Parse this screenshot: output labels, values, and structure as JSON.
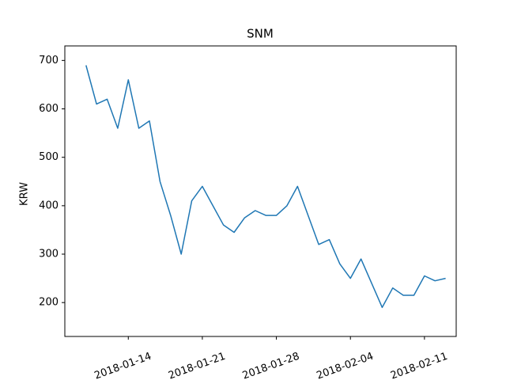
{
  "chart_data": {
    "type": "line",
    "title": "SNM",
    "y_label": "KRW",
    "x": [
      "2018-01-10",
      "2018-01-11",
      "2018-01-12",
      "2018-01-13",
      "2018-01-14",
      "2018-01-15",
      "2018-01-16",
      "2018-01-17",
      "2018-01-18",
      "2018-01-19",
      "2018-01-20",
      "2018-01-21",
      "2018-01-22",
      "2018-01-23",
      "2018-01-24",
      "2018-01-25",
      "2018-01-26",
      "2018-01-27",
      "2018-01-28",
      "2018-01-29",
      "2018-01-30",
      "2018-01-31",
      "2018-02-01",
      "2018-02-02",
      "2018-02-03",
      "2018-02-04",
      "2018-02-05",
      "2018-02-06",
      "2018-02-07",
      "2018-02-08",
      "2018-02-09",
      "2018-02-10",
      "2018-02-11",
      "2018-02-12",
      "2018-02-13"
    ],
    "series": [
      {
        "name": "SNM",
        "color": "#1f77b4",
        "values": [
          690,
          610,
          620,
          560,
          660,
          560,
          575,
          450,
          380,
          300,
          410,
          440,
          400,
          360,
          345,
          375,
          390,
          380,
          380,
          400,
          440,
          380,
          320,
          330,
          280,
          250,
          290,
          240,
          190,
          230,
          215,
          215,
          255,
          245,
          250
        ]
      }
    ],
    "xlim": [
      "2018-01-08",
      "2018-02-14"
    ],
    "xticks": [
      "2018-01-14",
      "2018-01-21",
      "2018-01-28",
      "2018-02-04",
      "2018-02-11"
    ],
    "ylim": [
      130,
      730
    ],
    "yticks": [
      200,
      300,
      400,
      500,
      600,
      700
    ]
  }
}
